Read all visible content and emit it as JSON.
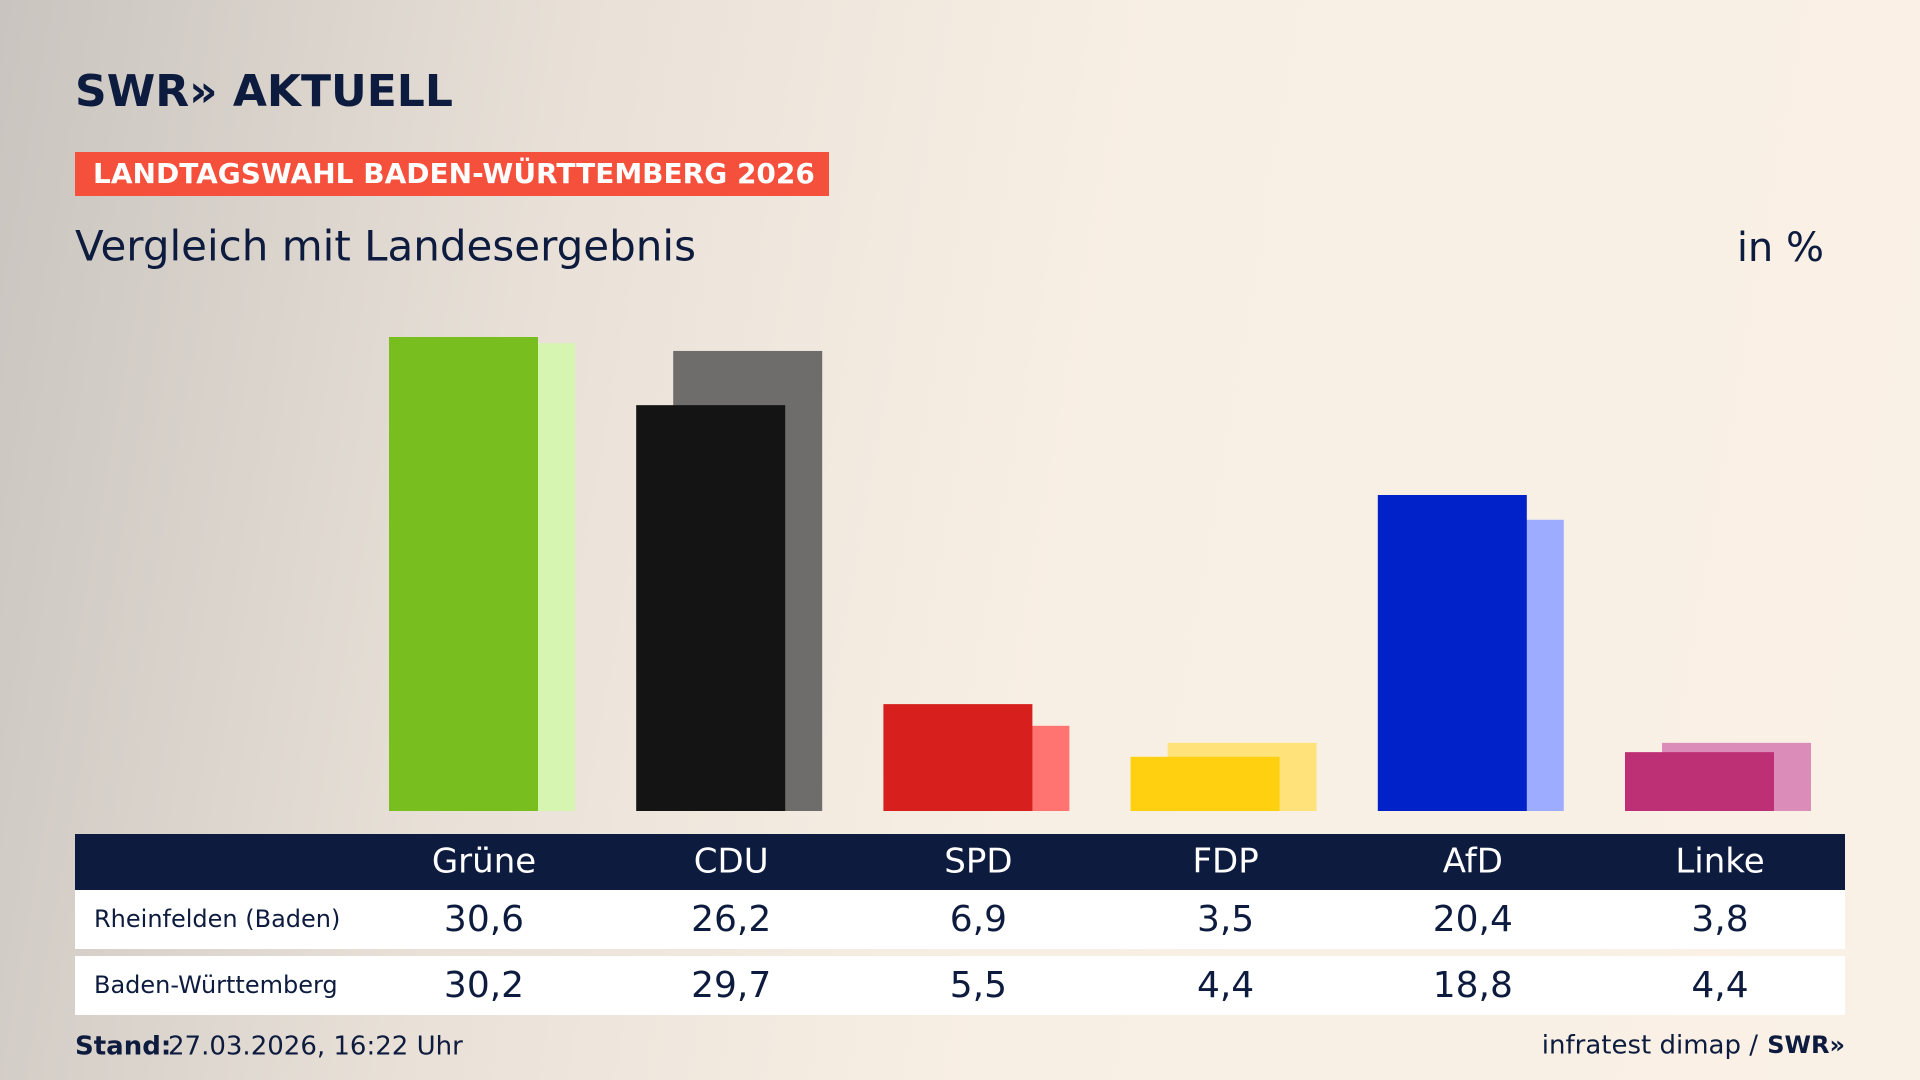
{
  "chart_data": {
    "type": "bar",
    "logo": "SWR» AKTUELL",
    "badge": "LANDTAGSWAHL BADEN-WÜRTTEMBERG 2026",
    "title": "Vergleich mit Landesergebnis",
    "unit": "in %",
    "categories": [
      "Grüne",
      "CDU",
      "SPD",
      "FDP",
      "AfD",
      "Linke"
    ],
    "series": [
      {
        "name": "Rheinfelden (Baden)",
        "colors": [
          "#78be1e",
          "#141414",
          "#d7201e",
          "#ffd00f",
          "#0022c8",
          "#be3075"
        ],
        "values": [
          30.6,
          26.2,
          6.9,
          3.5,
          20.4,
          3.8
        ],
        "value_labels": [
          "30,6",
          "26,2",
          "6,9",
          "3,5",
          "20,4",
          "3,8"
        ]
      },
      {
        "name": "Baden-Württemberg",
        "colors": [
          "#d6f5b0",
          "#6f6d6b",
          "#ff7370",
          "#ffe37a",
          "#9dacff",
          "#dc8cb8"
        ],
        "values": [
          30.2,
          29.7,
          5.5,
          4.4,
          18.8,
          4.4
        ],
        "value_labels": [
          "30,2",
          "29,7",
          "5,5",
          "4,4",
          "18,8",
          "4,4"
        ]
      }
    ],
    "footer_label": "Stand:",
    "footer_date": "27.03.2026, 16:22 Uhr",
    "source": "infratest dimap /",
    "source_logo": "SWR»"
  }
}
